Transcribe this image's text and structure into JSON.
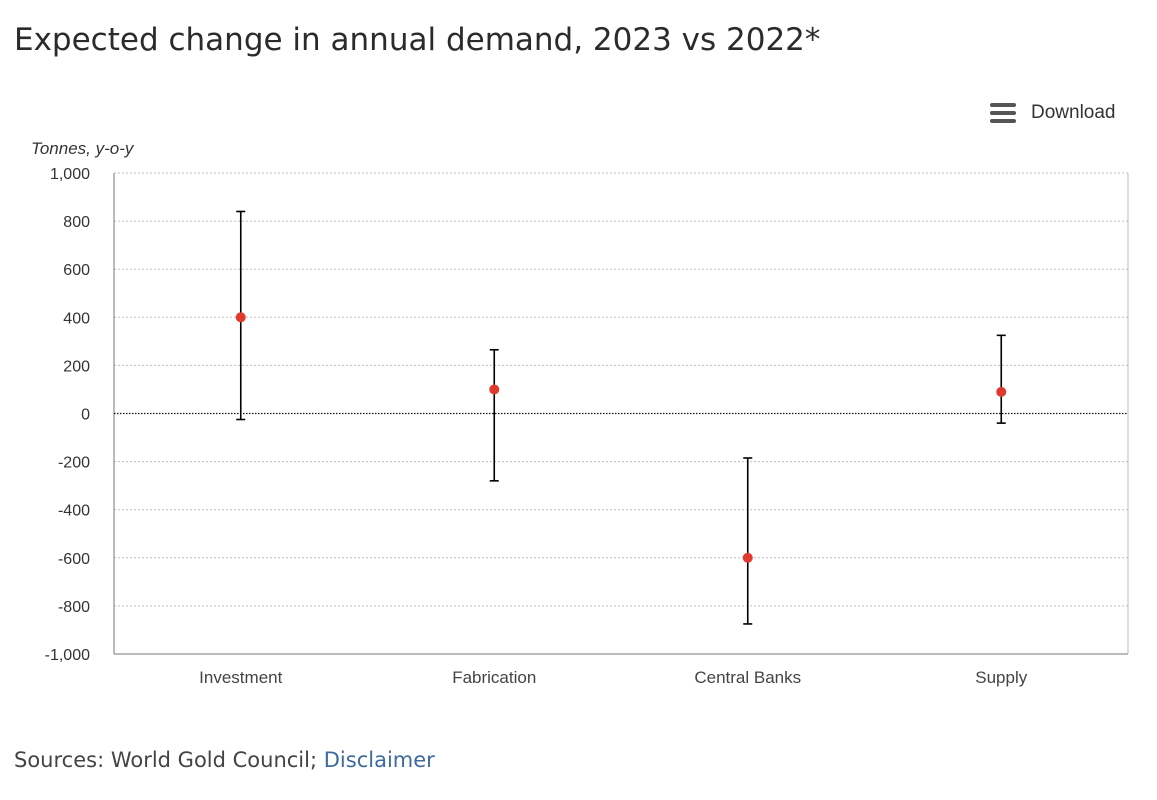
{
  "header": {
    "title": "Expected change in annual demand, 2023 vs 2022*"
  },
  "toolbar": {
    "download_label": "Download",
    "download_icon": "hamburger-menu-icon"
  },
  "footer": {
    "sources_label": "Sources: World Gold Council;",
    "disclaimer_label": "Disclaimer"
  },
  "colors": {
    "point": "#e03a2e",
    "error_bar": "#000000",
    "grid": "#bdbdbd",
    "link": "#3f6a9e"
  },
  "chart_data": {
    "type": "scatter",
    "title": "Expected change in annual demand, 2023 vs 2022*",
    "ylabel": "Tonnes, y-o-y",
    "xlabel": "",
    "ylim": [
      -1000,
      1000
    ],
    "yticks": [
      1000,
      800,
      600,
      400,
      200,
      0,
      -200,
      -400,
      -600,
      -800,
      -1000
    ],
    "ytick_labels": [
      "1,000",
      "800",
      "600",
      "400",
      "200",
      "0",
      "-200",
      "-400",
      "-600",
      "-800",
      "-1,000"
    ],
    "categories": [
      "Investment",
      "Fabrication",
      "Central Banks",
      "Supply"
    ],
    "values": [
      400,
      100,
      -600,
      90
    ],
    "error_low": [
      -25,
      -280,
      -875,
      -40
    ],
    "error_high": [
      840,
      265,
      -185,
      325
    ],
    "grid": true,
    "legend": "none"
  }
}
